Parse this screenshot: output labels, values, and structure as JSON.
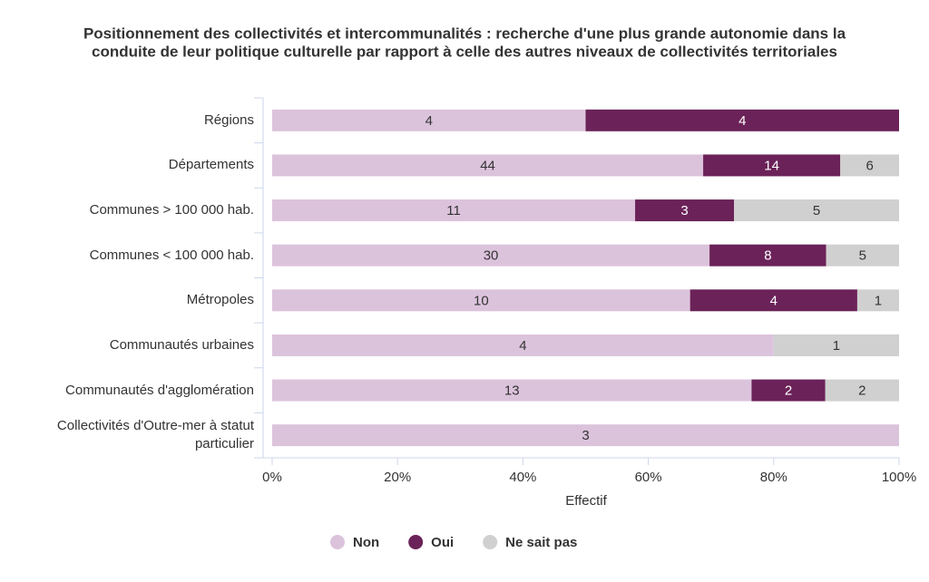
{
  "chart_data": {
    "type": "stacked_percent_barh",
    "title": "Positionnement des collectivités et intercommunalités : recherche d'une plus grande autonomie dans la",
    "title_line_2": "conduite de leur politique culturelle par rapport à celle des autres niveaux de collectivités territoriales",
    "x_label": "Effectif",
    "categories": [
      "Régions",
      "Départements",
      "Communes > 100 000 hab.",
      "Communes < 100 000 hab.",
      "Métropoles",
      "Communautés urbaines",
      "Communautés d'agglomération",
      "Collectivités d'Outre-mer à statut particulier"
    ],
    "series": [
      {
        "name": "Non",
        "color": "#dcc3dc",
        "values": [
          4,
          44,
          11,
          30,
          10,
          4,
          13,
          3
        ]
      },
      {
        "name": "Oui",
        "color": "#6b2258",
        "values": [
          4,
          14,
          3,
          8,
          4,
          null,
          2,
          null
        ]
      },
      {
        "name": "Ne sait pas",
        "color": "#d0d0d0",
        "values": [
          null,
          6,
          5,
          5,
          1,
          1,
          2,
          null
        ]
      }
    ],
    "xlim": [
      0,
      100
    ],
    "xticks": [
      {
        "value": 0,
        "label": "0%"
      },
      {
        "value": 20,
        "label": "20%"
      },
      {
        "value": 40,
        "label": "40%"
      },
      {
        "value": 60,
        "label": "60%"
      },
      {
        "value": 80,
        "label": "80%"
      },
      {
        "value": 100,
        "label": "100%"
      }
    ]
  }
}
